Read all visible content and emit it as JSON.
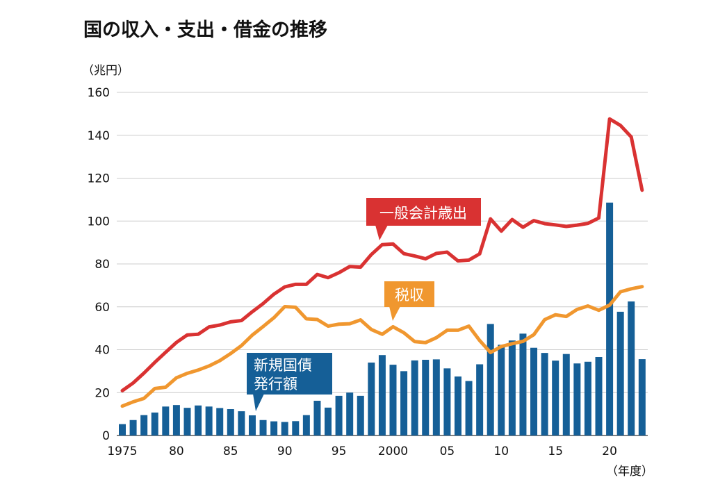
{
  "chart_data": {
    "type": "bar+line",
    "title": "国の収入・支出・借金の推移",
    "ylabel": "（兆円）",
    "xlabel": "（年度）",
    "ylim": [
      0,
      160
    ],
    "yticks": [
      0,
      20,
      40,
      60,
      80,
      100,
      120,
      140,
      160
    ],
    "xticks": [
      {
        "year": 1975,
        "label": "1975"
      },
      {
        "year": 1980,
        "label": "80"
      },
      {
        "year": 1985,
        "label": "85"
      },
      {
        "year": 1990,
        "label": "90"
      },
      {
        "year": 1995,
        "label": "95"
      },
      {
        "year": 2000,
        "label": "2000"
      },
      {
        "year": 2005,
        "label": "05"
      },
      {
        "year": 2010,
        "label": "10"
      },
      {
        "year": 2015,
        "label": "15"
      },
      {
        "year": 2020,
        "label": "20"
      }
    ],
    "grid": true,
    "x_start": 1975,
    "series": [
      {
        "name": "一般会計歳出",
        "type": "line",
        "color": "#d93232",
        "values": [
          20.9,
          24.5,
          29.1,
          34.1,
          38.8,
          43.4,
          46.9,
          47.2,
          50.6,
          51.5,
          53.0,
          53.6,
          57.7,
          61.5,
          65.9,
          69.3,
          70.5,
          70.5,
          75.1,
          73.6,
          75.9,
          78.8,
          78.5,
          84.4,
          89.0,
          89.3,
          84.8,
          83.7,
          82.4,
          84.9,
          85.5,
          81.4,
          81.8,
          84.7,
          101.0,
          95.3,
          100.7,
          97.1,
          100.2,
          98.8,
          98.2,
          97.5,
          98.1,
          98.9,
          101.4,
          147.6,
          144.6,
          139.2,
          114.4
        ]
      },
      {
        "name": "税収",
        "type": "line",
        "color": "#f0972f",
        "values": [
          13.7,
          15.7,
          17.3,
          21.9,
          22.5,
          26.9,
          29.0,
          30.5,
          32.4,
          34.9,
          38.2,
          41.9,
          46.8,
          50.8,
          54.9,
          60.1,
          59.8,
          54.4,
          54.1,
          51.0,
          51.9,
          52.1,
          53.9,
          49.4,
          47.2,
          50.7,
          47.9,
          43.8,
          43.3,
          45.6,
          49.1,
          49.1,
          51.0,
          44.3,
          38.7,
          41.5,
          42.8,
          43.9,
          47.0,
          54.0,
          56.3,
          55.5,
          58.8,
          60.4,
          58.4,
          60.8,
          67.0,
          68.4,
          69.4
        ]
      },
      {
        "name": "新規国債発行額",
        "type": "bar",
        "color": "#155f97",
        "values": [
          5.3,
          7.2,
          9.5,
          10.7,
          13.5,
          14.2,
          12.9,
          14.0,
          13.5,
          12.8,
          12.3,
          11.3,
          9.4,
          7.2,
          6.6,
          6.3,
          6.7,
          9.5,
          16.2,
          13.0,
          18.5,
          20.0,
          18.5,
          34.0,
          37.5,
          33.0,
          30.0,
          35.0,
          35.3,
          35.5,
          31.3,
          27.5,
          25.4,
          33.2,
          52.0,
          42.3,
          44.3,
          47.5,
          40.9,
          38.5,
          34.9,
          38.0,
          33.6,
          34.4,
          36.6,
          108.6,
          57.7,
          62.5,
          35.6
        ]
      }
    ],
    "callouts": {
      "expenditure": "一般会計歳出",
      "tax": "税収",
      "bonds_line1": "新規国債",
      "bonds_line2": "発行額"
    }
  }
}
